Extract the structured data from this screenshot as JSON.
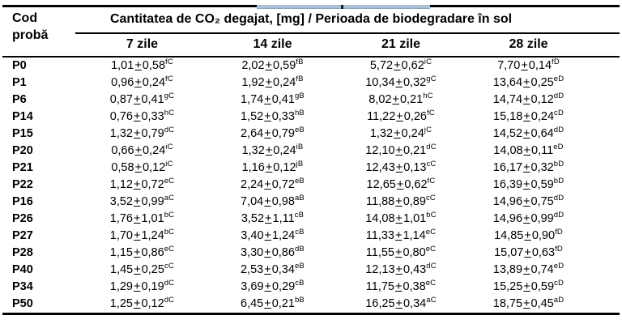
{
  "artifact": {
    "strip_color": "#a9c1d6",
    "tick_color": "#1c1c1c"
  },
  "colors": {
    "text": "#000000",
    "background": "#ffffff",
    "rule": "#000000"
  },
  "table": {
    "code_header_line1": "Cod",
    "code_header_line2": "probă",
    "span_header": "Cantitatea de CO₂ degajat, [mg] / Perioada de biodegradare în sol",
    "sub_headers": [
      "7 zile",
      "14 zile",
      "21 zile",
      "28 zile"
    ],
    "plus_minus": "+",
    "rows": [
      {
        "code": "P0",
        "cells": [
          [
            "1,01",
            "0,58",
            "fC"
          ],
          [
            "2,02",
            "0,59",
            "fB"
          ],
          [
            "5,72",
            "0,62",
            "iC"
          ],
          [
            "7,70",
            "0,14",
            "fD"
          ]
        ]
      },
      {
        "code": "P1",
        "cells": [
          [
            "0,96",
            "0,24",
            "fC"
          ],
          [
            "1,92",
            "0,24",
            "fB"
          ],
          [
            "10,34",
            "0,32",
            "gC"
          ],
          [
            "13,64",
            "0,25",
            "eD"
          ]
        ]
      },
      {
        "code": "P6",
        "cells": [
          [
            "0,87",
            "0,41",
            "gC"
          ],
          [
            "1,74",
            "0,41",
            "gB"
          ],
          [
            "8,02",
            "0,21",
            "hC"
          ],
          [
            "14,74",
            "0,12",
            "dD"
          ]
        ]
      },
      {
        "code": "P14",
        "cells": [
          [
            "0,76",
            "0,33",
            "hC"
          ],
          [
            "1,52",
            "0,33",
            "hB"
          ],
          [
            "11,22",
            "0,26",
            "fC"
          ],
          [
            "15,18",
            "0,24",
            "cD"
          ]
        ]
      },
      {
        "code": "P15",
        "cells": [
          [
            "1,32",
            "0,79",
            "dC"
          ],
          [
            "2,64",
            "0,79",
            "eB"
          ],
          [
            "1,32",
            "0,24",
            "jC"
          ],
          [
            "14,52",
            "0,64",
            "dD"
          ]
        ]
      },
      {
        "code": "P20",
        "cells": [
          [
            "0,66",
            "0,24",
            "iC"
          ],
          [
            "1,32",
            "0,24",
            "iB"
          ],
          [
            "12,10",
            "0,21",
            "dC"
          ],
          [
            "14,08",
            "0,11",
            "eD"
          ]
        ]
      },
      {
        "code": "P21",
        "cells": [
          [
            "0,58",
            "0,12",
            "iC"
          ],
          [
            "1,16",
            "0,12",
            "jB"
          ],
          [
            "12,43",
            "0,13",
            "cC"
          ],
          [
            "16,17",
            "0,32",
            "bD"
          ]
        ]
      },
      {
        "code": "P22",
        "cells": [
          [
            "1,12",
            "0,72",
            "eC"
          ],
          [
            "2,24",
            "0,72",
            "eB"
          ],
          [
            "12,65",
            "0,62",
            "fC"
          ],
          [
            "16,39",
            "0,59",
            "bD"
          ]
        ]
      },
      {
        "code": "P16",
        "cells": [
          [
            "3,52",
            "0,99",
            "aC"
          ],
          [
            "7,04",
            "0,98",
            "aB"
          ],
          [
            "11,88",
            "0,89",
            "cC"
          ],
          [
            "14,96",
            "0,75",
            "dD"
          ]
        ]
      },
      {
        "code": "P26",
        "cells": [
          [
            "1,76",
            "1,01",
            "bC"
          ],
          [
            "3,52",
            "1,11",
            "cB"
          ],
          [
            "14,08",
            "1,01",
            "bC"
          ],
          [
            "14,96",
            "0,99",
            "dD"
          ]
        ]
      },
      {
        "code": "P27",
        "cells": [
          [
            "1,70",
            "1,24",
            "bC"
          ],
          [
            "3,40",
            "1,24",
            "cB"
          ],
          [
            "11,33",
            "1,14",
            "eC"
          ],
          [
            "14,85",
            "0,90",
            "fD"
          ]
        ]
      },
      {
        "code": "P28",
        "cells": [
          [
            "1,15",
            "0,86",
            "eC"
          ],
          [
            "3,30",
            "0,86",
            "dB"
          ],
          [
            "11,55",
            "0,80",
            "eC"
          ],
          [
            "15,07",
            "0,63",
            "fD"
          ]
        ]
      },
      {
        "code": "P40",
        "cells": [
          [
            "1,45",
            "0,25",
            "cC"
          ],
          [
            "2,53",
            "0,34",
            "eB"
          ],
          [
            "12,13",
            "0,43",
            "dC"
          ],
          [
            "13,89",
            "0,74",
            "eD"
          ]
        ]
      },
      {
        "code": "P34",
        "cells": [
          [
            "1,29",
            "0,19",
            "dC"
          ],
          [
            "3,69",
            "0,29",
            "cB"
          ],
          [
            "11,75",
            "0,38",
            "eC"
          ],
          [
            "15,25",
            "0,59",
            "cD"
          ]
        ]
      },
      {
        "code": "P50",
        "cells": [
          [
            "1,25",
            "0,12",
            "dC"
          ],
          [
            "6,45",
            "0,21",
            "bB"
          ],
          [
            "16,25",
            "0,34",
            "aC"
          ],
          [
            "18,75",
            "0,45",
            "aD"
          ]
        ]
      }
    ]
  }
}
